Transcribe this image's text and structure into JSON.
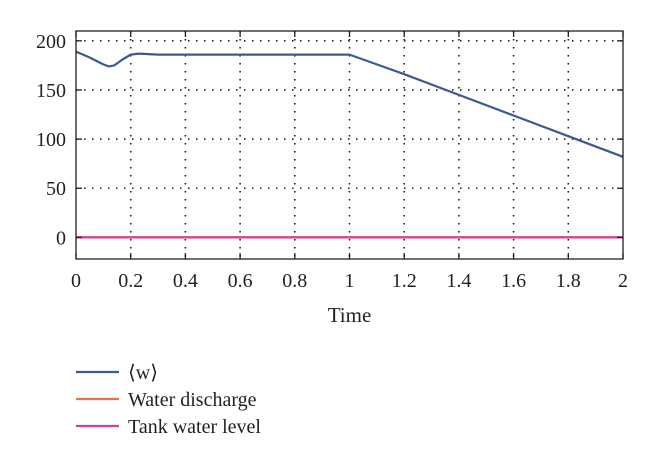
{
  "chart_data": {
    "type": "line",
    "title": "",
    "xlabel": "Time",
    "ylabel": "",
    "xlim": [
      0,
      2
    ],
    "ylim": [
      -22,
      210
    ],
    "xticks": [
      0,
      0.2,
      0.4,
      0.6,
      0.8,
      1,
      1.2,
      1.4,
      1.6,
      1.8,
      2
    ],
    "xtick_labels": [
      "0",
      "0.2",
      "0.4",
      "0.6",
      "0.8",
      "1",
      "1.2",
      "1.4",
      "1.6",
      "1.8",
      "2"
    ],
    "yticks": [
      0,
      50,
      100,
      150,
      200
    ],
    "ytick_labels": [
      "0",
      "50",
      "100",
      "150",
      "200"
    ],
    "grid": true,
    "legend_position": "below",
    "series": [
      {
        "name": "⟨w⟩",
        "color": "#3c5a8f",
        "x": [
          0,
          0.05,
          0.1,
          0.12,
          0.14,
          0.17,
          0.2,
          0.23,
          0.3,
          0.4,
          0.6,
          0.8,
          1.0,
          1.2,
          1.4,
          1.6,
          1.8,
          2.0
        ],
        "y": [
          189,
          183,
          176,
          174,
          175,
          181,
          186,
          187,
          186,
          186,
          186,
          186,
          186,
          166,
          145,
          124,
          103,
          82
        ]
      },
      {
        "name": "Water discharge",
        "color": "#e8714a",
        "x": [
          0,
          2
        ],
        "y": [
          0,
          0
        ]
      },
      {
        "name": "Tank water level",
        "color": "#c8449a",
        "x": [
          0,
          2
        ],
        "y": [
          0,
          0
        ]
      }
    ]
  }
}
